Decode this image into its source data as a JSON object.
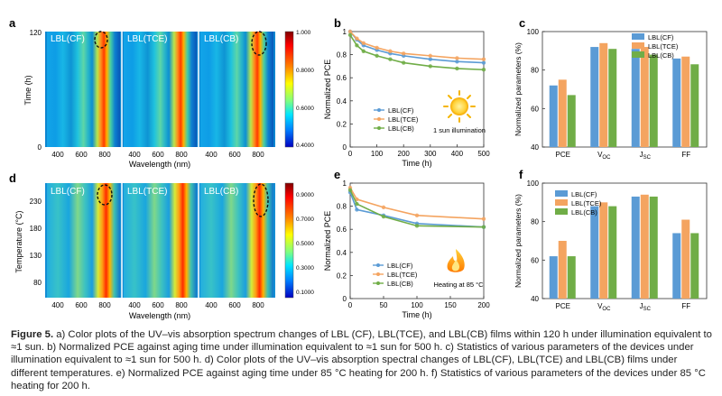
{
  "colors": {
    "jet": [
      "#00007f",
      "#0000ff",
      "#0080ff",
      "#00e5ff",
      "#7fff7f",
      "#ffff00",
      "#ff8000",
      "#ff0000",
      "#7f0000"
    ],
    "cf": "#5b9bd5",
    "tce": "#f4a460",
    "cb": "#70ad47"
  },
  "panels": {
    "a": {
      "letter": "a",
      "labels": [
        "LBL(CF)",
        "LBL(TCE)",
        "LBL(CB)"
      ],
      "ylabel": "Time (h)",
      "yticks": [
        "120",
        "0"
      ],
      "xlabel": "Wavelength (nm)",
      "xticks": [
        "400",
        "600",
        "800"
      ],
      "colorbar_ticks": [
        "1.000",
        "0.8000",
        "0.6000",
        "0.4000"
      ]
    },
    "d": {
      "letter": "d",
      "labels": [
        "LBL(CF)",
        "LBL(TCE)",
        "LBL(CB)"
      ],
      "ylabel": "Temperature (°C)",
      "yticks": [
        "230",
        "180",
        "130",
        "80"
      ],
      "xlabel": "Wavelength (nm)",
      "xticks": [
        "400",
        "600",
        "800"
      ],
      "colorbar_ticks": [
        "0.9000",
        "0.7000",
        "0.5000",
        "0.3000",
        "0.1000"
      ]
    }
  },
  "chart_data": [
    {
      "id": "b",
      "type": "line",
      "xlabel": "Time (h)",
      "ylabel": "Normalized PCE",
      "xlim": [
        0,
        500
      ],
      "ylim": [
        0.0,
        1.0
      ],
      "xticks": [
        0,
        100,
        200,
        300,
        400,
        500
      ],
      "yticks": [
        0.0,
        0.2,
        0.4,
        0.6,
        0.8,
        1.0
      ],
      "annotation": "1 sun illumination",
      "series": [
        {
          "name": "LBL(CF)",
          "x": [
            0,
            25,
            50,
            100,
            150,
            200,
            300,
            400,
            500
          ],
          "values": [
            1.0,
            0.93,
            0.88,
            0.84,
            0.81,
            0.79,
            0.76,
            0.74,
            0.73
          ]
        },
        {
          "name": "LBL(TCE)",
          "x": [
            0,
            25,
            50,
            100,
            150,
            200,
            300,
            400,
            500
          ],
          "values": [
            1.0,
            0.94,
            0.9,
            0.86,
            0.83,
            0.81,
            0.79,
            0.77,
            0.76
          ]
        },
        {
          "name": "LBL(CB)",
          "x": [
            0,
            25,
            50,
            100,
            150,
            200,
            300,
            400,
            500
          ],
          "values": [
            0.97,
            0.88,
            0.83,
            0.79,
            0.76,
            0.73,
            0.7,
            0.68,
            0.67
          ]
        }
      ]
    },
    {
      "id": "c",
      "type": "bar",
      "ylabel": "Normalized parameters (%)",
      "ylim": [
        40,
        100
      ],
      "yticks": [
        40,
        60,
        80,
        100
      ],
      "categories": [
        "PCE",
        "V",
        "J",
        "FF"
      ],
      "category_subs": [
        "",
        "OC",
        "SC",
        ""
      ],
      "series": [
        {
          "name": "LBL(CF)",
          "values": [
            72,
            92,
            91,
            86
          ]
        },
        {
          "name": "LBL(TCE)",
          "values": [
            75,
            94,
            92,
            87
          ]
        },
        {
          "name": "LBL(CB)",
          "values": [
            67,
            91,
            88,
            83
          ]
        }
      ]
    },
    {
      "id": "e",
      "type": "line",
      "xlabel": "Time (h)",
      "ylabel": "Normalized PCE",
      "xlim": [
        0,
        200
      ],
      "ylim": [
        0.0,
        1.0
      ],
      "xticks": [
        0,
        50,
        100,
        150,
        200
      ],
      "yticks": [
        0.0,
        0.2,
        0.4,
        0.6,
        0.8,
        1.0
      ],
      "annotation": "Heating at 85 °C",
      "series": [
        {
          "name": "LBL(CF)",
          "x": [
            0,
            10,
            50,
            100,
            200
          ],
          "values": [
            0.92,
            0.77,
            0.72,
            0.65,
            0.62
          ]
        },
        {
          "name": "LBL(TCE)",
          "x": [
            0,
            10,
            50,
            100,
            200
          ],
          "values": [
            0.96,
            0.86,
            0.79,
            0.72,
            0.69
          ]
        },
        {
          "name": "LBL(CB)",
          "x": [
            0,
            10,
            50,
            100,
            200
          ],
          "values": [
            0.94,
            0.82,
            0.71,
            0.63,
            0.62
          ]
        }
      ]
    },
    {
      "id": "f",
      "type": "bar",
      "ylabel": "Normalized parameters (%)",
      "ylim": [
        40,
        100
      ],
      "yticks": [
        40,
        60,
        80,
        100
      ],
      "categories": [
        "PCE",
        "V",
        "J",
        "FF"
      ],
      "category_subs": [
        "",
        "OC",
        "SC",
        ""
      ],
      "series": [
        {
          "name": "LBL(CF)",
          "values": [
            62,
            88,
            93,
            74
          ]
        },
        {
          "name": "LBL(TCE)",
          "values": [
            70,
            90,
            94,
            81
          ]
        },
        {
          "name": "LBL(CB)",
          "values": [
            62,
            88,
            93,
            74
          ]
        }
      ]
    }
  ],
  "caption": {
    "label": "Figure 5.",
    "text": "a) Color plots of the UV–vis absorption spectrum changes of LBL (CF), LBL(TCE), and LBL(CB) films within 120 h under illumination equivalent to ≈1 sun. b) Normalized PCE against aging time under illumination equivalent to ≈1 sun for 500 h. c) Statistics of various parameters of the devices under illumination equivalent to ≈1 sun for 500 h. d) Color plots of the UV–vis absorption spectral changes of LBL(CF), LBL(TCE) and LBL(CB) films under different temperatures. e) Normalized PCE against aging time under 85 °C heating for 200 h. f) Statistics of various parameters of the devices under 85 °C heating for 200 h."
  }
}
